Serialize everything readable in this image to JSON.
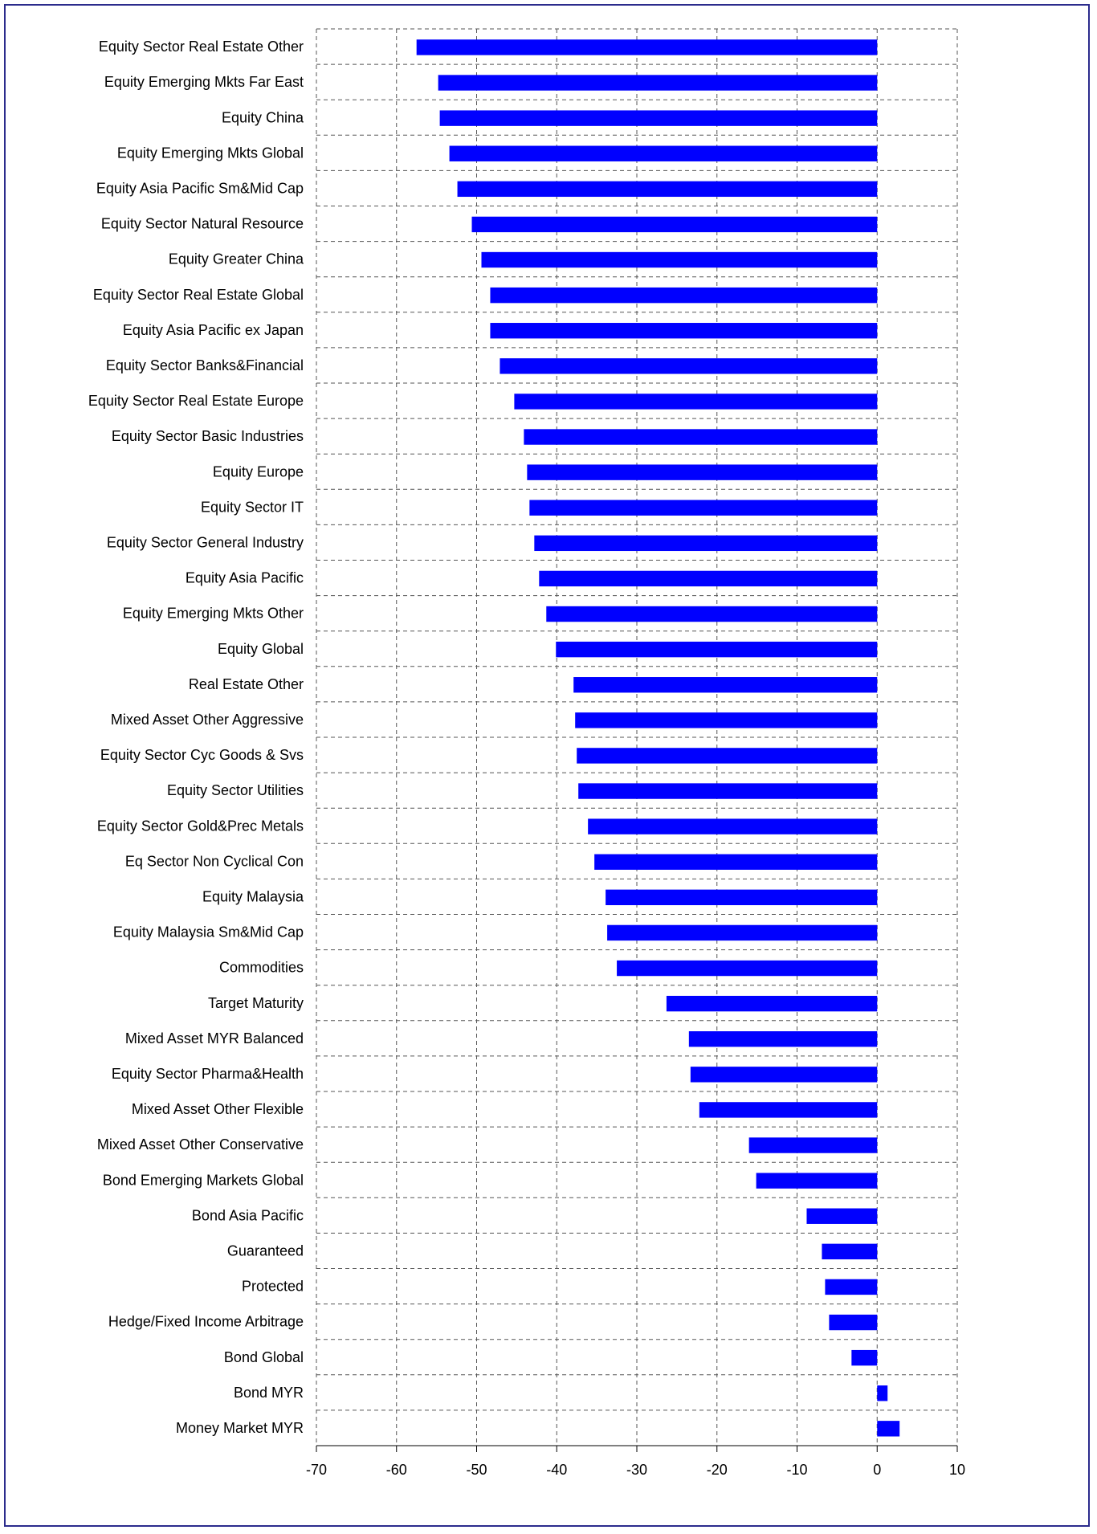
{
  "chart_data": {
    "type": "bar",
    "orientation": "horizontal",
    "title": "",
    "xlabel": "",
    "ylabel": "",
    "xlim": [
      -70,
      10
    ],
    "x_ticks": [
      -70,
      -60,
      -50,
      -40,
      -30,
      -20,
      -10,
      0,
      10
    ],
    "grid": true,
    "bar_color": "#0000ff",
    "categories": [
      "Equity Sector Real Estate Other",
      "Equity Emerging Mkts Far East",
      "Equity China",
      "Equity Emerging Mkts Global",
      "Equity Asia Pacific Sm&Mid Cap",
      "Equity Sector Natural Resource",
      "Equity Greater China",
      "Equity Sector Real Estate Global",
      "Equity Asia Pacific ex Japan",
      "Equity Sector Banks&Financial",
      "Equity Sector Real Estate Europe",
      "Equity Sector Basic Industries",
      "Equity Europe",
      "Equity Sector IT",
      "Equity Sector General Industry",
      "Equity Asia Pacific",
      "Equity Emerging Mkts Other",
      "Equity Global",
      "Real Estate Other",
      "Mixed Asset Other Aggressive",
      "Equity Sector Cyc Goods & Svs",
      "Equity Sector Utilities",
      "Equity Sector Gold&Prec Metals",
      "Eq Sector Non Cyclical Con",
      "Equity Malaysia",
      "Equity Malaysia Sm&Mid Cap",
      "Commodities",
      "Target Maturity",
      "Mixed Asset MYR Balanced",
      "Equity Sector Pharma&Health",
      "Mixed Asset Other Flexible",
      "Mixed Asset Other Conservative",
      "Bond Emerging Markets Global",
      "Bond Asia Pacific",
      "Guaranteed",
      "Protected",
      "Hedge/Fixed Income Arbitrage",
      "Bond Global",
      "Bond MYR",
      "Money Market MYR"
    ],
    "values": [
      -57.5,
      -54.8,
      -54.6,
      -53.4,
      -52.4,
      -50.6,
      -49.4,
      -48.3,
      -48.3,
      -47.1,
      -45.3,
      -44.1,
      -43.7,
      -43.4,
      -42.8,
      -42.2,
      -41.3,
      -40.1,
      -37.9,
      -37.7,
      -37.5,
      -37.3,
      -36.1,
      -35.3,
      -33.9,
      -33.7,
      -32.5,
      -26.3,
      -23.5,
      -23.3,
      -22.2,
      -16.0,
      -15.1,
      -8.8,
      -6.9,
      -6.5,
      -6.0,
      -3.2,
      1.3,
      2.8
    ]
  }
}
